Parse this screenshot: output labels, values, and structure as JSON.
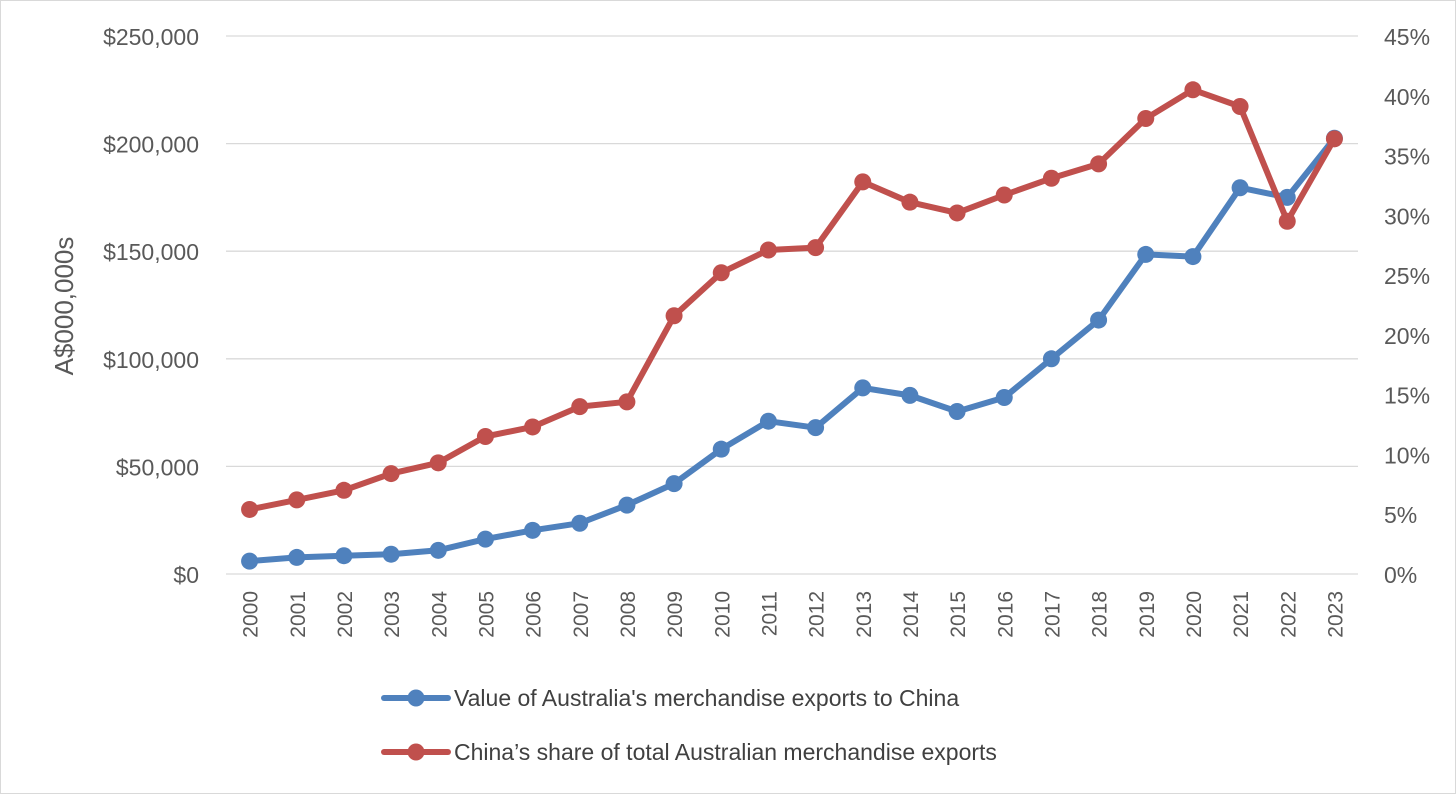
{
  "chart_data": {
    "type": "line",
    "title": "",
    "xlabel": "",
    "ylabel": "A$000,000s",
    "y2label": "",
    "x": [
      "2000",
      "2001",
      "2002",
      "2003",
      "2004",
      "2005",
      "2006",
      "2007",
      "2008",
      "2009",
      "2010",
      "2011",
      "2012",
      "2013",
      "2014",
      "2015",
      "2016",
      "2017",
      "2018",
      "2019",
      "2020",
      "2021",
      "2022",
      "2023"
    ],
    "ylim": [
      0,
      250000
    ],
    "y2lim": [
      0,
      45
    ],
    "y_ticks": [
      "$0",
      "$50,000",
      "$100,000",
      "$150,000",
      "$200,000",
      "$250,000"
    ],
    "y2_ticks": [
      "0%",
      "5%",
      "10%",
      "15%",
      "20%",
      "25%",
      "30%",
      "35%",
      "40%",
      "45%"
    ],
    "grid": true,
    "legend_position": "bottom",
    "series": [
      {
        "name": "Value of Australia's merchandise exports to China",
        "axis": "left",
        "color": "#4f81bd",
        "values": [
          6000,
          7700,
          8500,
          9200,
          11000,
          16200,
          20300,
          23600,
          32000,
          42000,
          58000,
          71000,
          68000,
          86500,
          83000,
          75500,
          82000,
          100000,
          118000,
          148500,
          147500,
          179500,
          175000,
          202500
        ]
      },
      {
        "name": "China’s share of total Australian merchandise exports",
        "axis": "right",
        "color": "#c0504d",
        "values": [
          5.4,
          6.2,
          7.0,
          8.4,
          9.3,
          11.5,
          12.3,
          14.0,
          14.4,
          21.6,
          25.2,
          27.1,
          27.3,
          32.8,
          31.1,
          30.2,
          31.7,
          33.1,
          34.3,
          38.1,
          40.5,
          39.1,
          29.5,
          36.4
        ]
      }
    ]
  }
}
